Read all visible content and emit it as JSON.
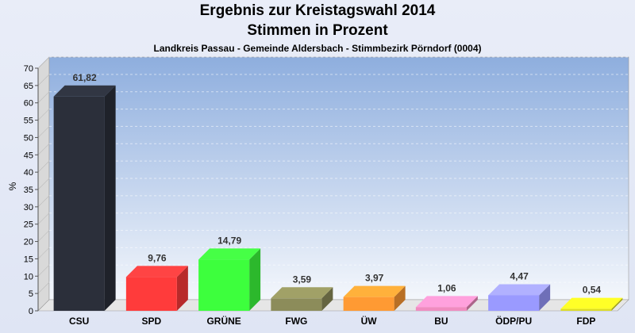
{
  "header": {
    "title_line1": "Ergebnis zur Kreistagswahl 2014",
    "title_line2": "Stimmen in Prozent",
    "subtitle": "Landkreis Passau - Gemeinde Aldersbach - Stimmbezirk Pörndorf (0004)"
  },
  "chart_data": {
    "type": "bar",
    "title": "Ergebnis zur Kreistagswahl 2014",
    "subtitle": "Stimmen in Prozent",
    "xlabel": "",
    "ylabel": "%",
    "ylim": [
      0,
      70
    ],
    "yticks": [
      0,
      5,
      10,
      15,
      20,
      25,
      30,
      35,
      40,
      45,
      50,
      55,
      60,
      65,
      70
    ],
    "grid": true,
    "categories": [
      "CSU",
      "SPD",
      "GRÜNE",
      "FWG",
      "ÜW",
      "BU",
      "ÖDP/PU",
      "FDP"
    ],
    "values": [
      61.82,
      9.76,
      14.79,
      3.59,
      3.97,
      1.06,
      4.47,
      0.54
    ],
    "value_labels": [
      "61,82",
      "9,76",
      "14,79",
      "3,59",
      "3,97",
      "1,06",
      "4,47",
      "0,54"
    ],
    "colors": [
      "#2b2f3a",
      "#ff3b3b",
      "#3dff3d",
      "#8c8c5a",
      "#ff9a33",
      "#f08cc0",
      "#9a9aff",
      "#dede22"
    ]
  }
}
